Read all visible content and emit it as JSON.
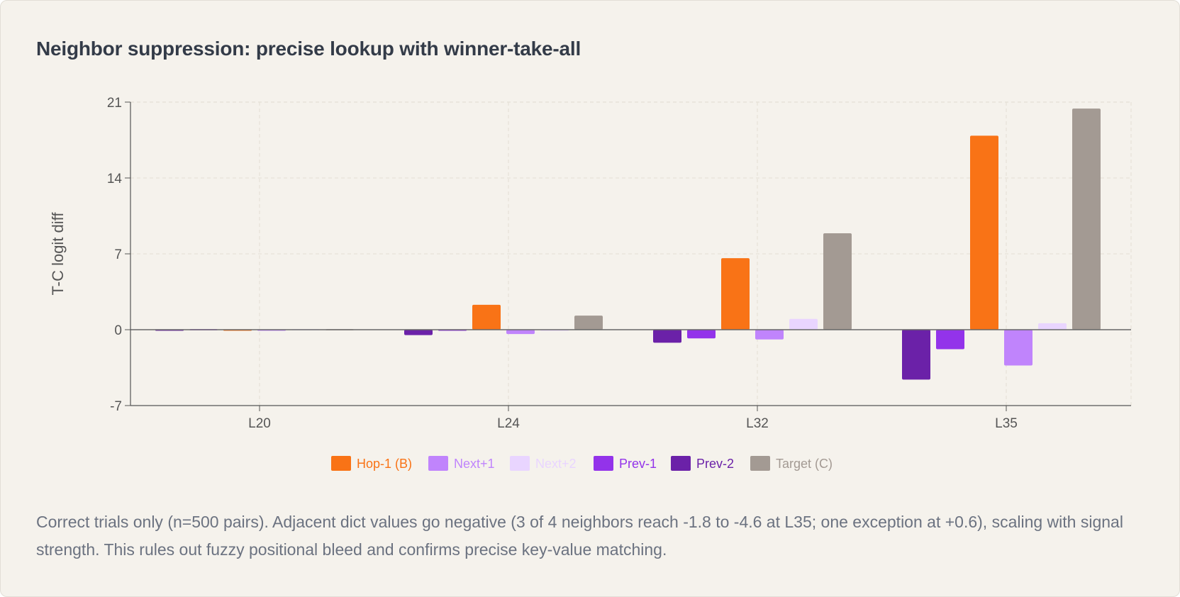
{
  "title": "Neighbor suppression: precise lookup with winner-take-all",
  "caption": "Correct trials only (n=500 pairs). Adjacent dict values go negative (3 of 4 neighbors reach -1.8 to -4.6 at L35; one exception at +0.6), scaling with signal strength. This rules out fuzzy positional bleed and confirms precise key-value matching.",
  "chart_data": {
    "type": "bar",
    "categories": [
      "L20",
      "L24",
      "L32",
      "L35"
    ],
    "ylabel": "T-C logit diff",
    "xlabel": "",
    "ylim": [
      -7,
      21
    ],
    "yticks": [
      -7,
      0,
      7,
      14,
      21
    ],
    "grid": true,
    "legend_position": "bottom",
    "series": [
      {
        "name": "Prev-2",
        "color": "#6b21a8",
        "values": [
          -0.1,
          -0.5,
          -1.2,
          -4.6
        ]
      },
      {
        "name": "Prev-1",
        "color": "#9333ea",
        "values": [
          0.0,
          -0.1,
          -0.8,
          -1.8
        ]
      },
      {
        "name": "Hop-1 (B)",
        "color": "#f97316",
        "values": [
          -0.1,
          2.3,
          6.6,
          17.9
        ]
      },
      {
        "name": "Next+1",
        "color": "#c084fc",
        "values": [
          -0.1,
          -0.4,
          -0.9,
          -3.3
        ]
      },
      {
        "name": "Next+2",
        "color": "#e9d5ff",
        "values": [
          0.0,
          -0.1,
          1.0,
          0.6
        ]
      },
      {
        "name": "Target (C)",
        "color": "#a39a93",
        "values": [
          0.0,
          1.3,
          8.9,
          20.4
        ]
      }
    ],
    "legend_order": [
      "Hop-1 (B)",
      "Next+1",
      "Next+2",
      "Prev-1",
      "Prev-2",
      "Target (C)"
    ]
  }
}
